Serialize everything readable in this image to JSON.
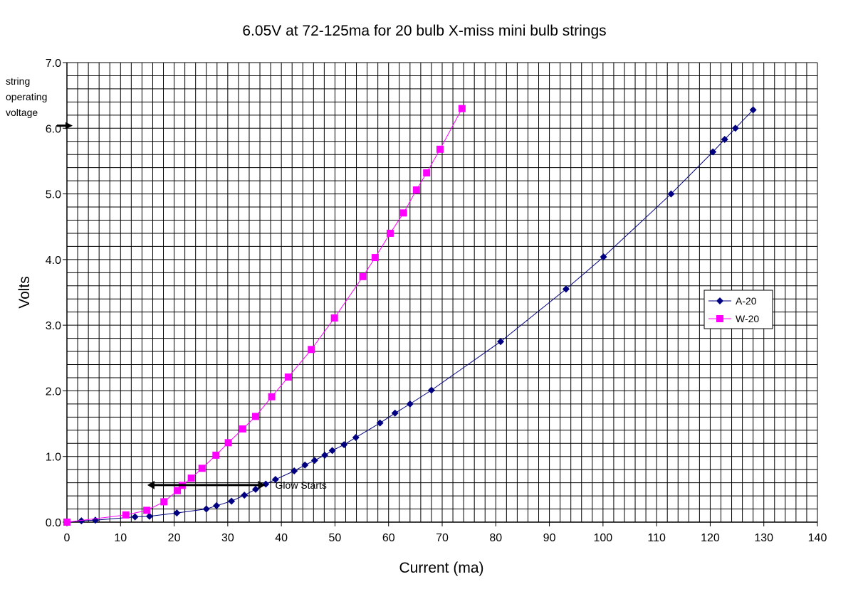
{
  "chart_data": {
    "type": "line",
    "title": "6.05V at 72-125ma for 20 bulb X-miss mini bulb strings",
    "xlabel": "Current (ma)",
    "ylabel": "Volts",
    "xlim": [
      0,
      140
    ],
    "ylim": [
      0,
      7
    ],
    "x_major_step": 10,
    "x_minor_step": 2,
    "y_major_step": 1,
    "y_minor_step": 0.2,
    "grid": true,
    "legend_position": "right",
    "x_ticks": [
      "0",
      "10",
      "20",
      "30",
      "40",
      "50",
      "60",
      "70",
      "80",
      "90",
      "100",
      "110",
      "120",
      "130",
      "140"
    ],
    "y_ticks": [
      "0.0",
      "1.0",
      "2.0",
      "3.0",
      "4.0",
      "5.0",
      "6.0",
      "7.0"
    ],
    "series": [
      {
        "name": "A-20",
        "color": "#000080",
        "marker": "diamond",
        "points": [
          [
            0,
            0
          ],
          [
            2.7,
            0.02
          ],
          [
            5.3,
            0.03
          ],
          [
            12.7,
            0.08
          ],
          [
            15.4,
            0.09
          ],
          [
            20.5,
            0.14
          ],
          [
            26,
            0.2
          ],
          [
            27.9,
            0.25
          ],
          [
            30.7,
            0.32
          ],
          [
            33.1,
            0.41
          ],
          [
            35.2,
            0.5
          ],
          [
            37.1,
            0.58
          ],
          [
            38.9,
            0.65
          ],
          [
            42.4,
            0.78
          ],
          [
            44.4,
            0.87
          ],
          [
            46.2,
            0.94
          ],
          [
            48.1,
            1.02
          ],
          [
            49.5,
            1.09
          ],
          [
            51.7,
            1.18
          ],
          [
            53.9,
            1.29
          ],
          [
            58.4,
            1.51
          ],
          [
            61.2,
            1.66
          ],
          [
            64,
            1.8
          ],
          [
            68,
            2.01
          ],
          [
            80.9,
            2.75
          ],
          [
            93.1,
            3.55
          ],
          [
            100.1,
            4.04
          ],
          [
            112.7,
            5.0
          ],
          [
            120.5,
            5.64
          ],
          [
            122.7,
            5.83
          ],
          [
            124.7,
            6.0
          ],
          [
            128,
            6.28
          ]
        ]
      },
      {
        "name": "W-20",
        "color": "#FF00FF",
        "marker": "square",
        "points": [
          [
            0,
            0
          ],
          [
            11,
            0.11
          ],
          [
            14.9,
            0.18
          ],
          [
            18.1,
            0.31
          ],
          [
            20.6,
            0.48
          ],
          [
            21.5,
            0.56
          ],
          [
            23.2,
            0.67
          ],
          [
            25.2,
            0.82
          ],
          [
            27.8,
            1.02
          ],
          [
            30.1,
            1.21
          ],
          [
            32.8,
            1.42
          ],
          [
            35.2,
            1.61
          ],
          [
            38.2,
            1.91
          ],
          [
            41.3,
            2.21
          ],
          [
            45.6,
            2.63
          ],
          [
            49.9,
            3.11
          ],
          [
            55.2,
            3.74
          ],
          [
            57.5,
            4.03
          ],
          [
            60.3,
            4.4
          ],
          [
            62.8,
            4.71
          ],
          [
            65.2,
            5.06
          ],
          [
            67.1,
            5.32
          ],
          [
            69.6,
            5.68
          ],
          [
            73.7,
            6.3
          ]
        ]
      }
    ],
    "annotations": [
      {
        "text": "Glow Starts",
        "arrow_from": [
          15,
          0.5
        ],
        "arrow_to": [
          37,
          0.5
        ]
      },
      {
        "text_lines": [
          "string",
          "operating",
          "voltage"
        ],
        "arrow_at_y": 6.05
      }
    ]
  }
}
